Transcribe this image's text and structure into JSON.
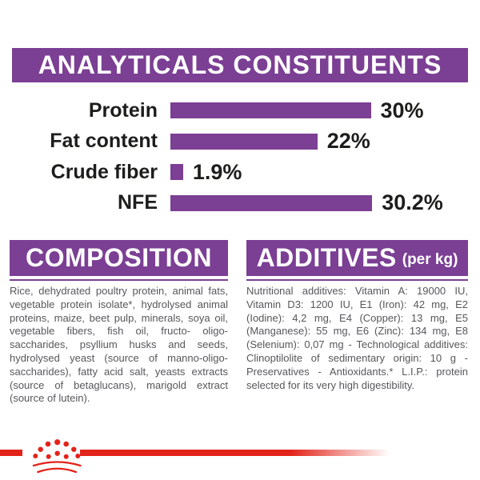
{
  "colors": {
    "purple": "#7b3f94",
    "red": "#e2231a",
    "label_black": "#1d1d1b",
    "body_gray": "#57575b"
  },
  "header": {
    "title": "ANALYTICALS CONSTITUENTS"
  },
  "chart_data": {
    "type": "bar",
    "orientation": "horizontal",
    "title": "ANALYTICALS CONSTITUENTS",
    "categories": [
      "Protein",
      "Fat content",
      "Crude fiber",
      "NFE"
    ],
    "values": [
      30,
      22,
      1.9,
      30.2
    ],
    "value_labels": [
      "30%",
      "22%",
      "1.9%",
      "30.2%"
    ],
    "unit": "%",
    "bar_color": "#7b3f94",
    "xlim": [
      0,
      36
    ],
    "grid": false,
    "legend": false
  },
  "composition": {
    "title": "COMPOSITION",
    "body": "Rice, dehydrated poultry protein, animal fats, vegetable protein isolate*, hydrolysed animal proteins, maize, beet pulp, minerals, soya oil, vegetable fibers, fish oil, fructo- oligo-saccharides, psyllium husks and seeds, hydrolysed yeast (source of manno-oligo-saccharides), fatty acid salt, yeasts extracts (source of betaglucans), marigold extract (source of lutein)."
  },
  "additives": {
    "title": "ADDITIVES",
    "title_suffix": "(per kg)",
    "body": "Nutritional additives: Vitamin A: 19000 IU, Vitamin D3: 1200 IU, E1 (Iron): 42 mg, E2 (Iodine): 4,2 mg, E4 (Copper): 13 mg, E5 (Manganese): 55 mg, E6 (Zinc): 134 mg, E8 (Selenium): 0,07 mg - Technological additives: Clinoptilolite of sedimentary origin: 10 g - Preservatives - Antioxidants.* L.I.P.: protein selected for its very high digestibility."
  },
  "footer": {
    "logo": "royal-canin-crown-logo"
  }
}
